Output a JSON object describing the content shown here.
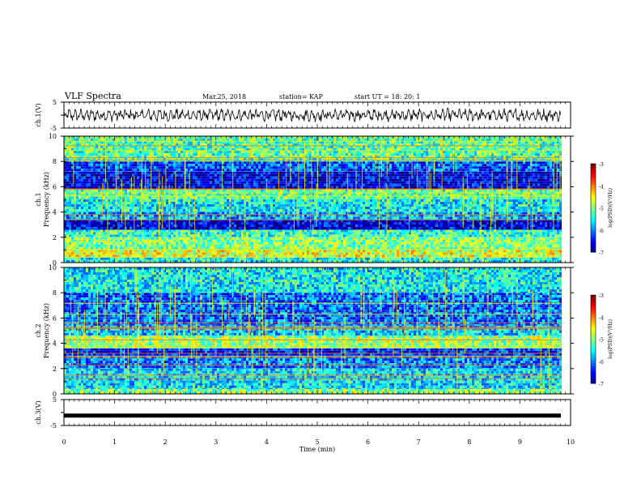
{
  "header": {
    "title": "VLF Spectra",
    "date": "Mar.25, 2018",
    "station": "station= KAP",
    "start": "start  UT =   18: 20: 1"
  },
  "chart_data": [
    {
      "type": "line",
      "panel": "ch1-waveform",
      "ylabel": "ch.1(V)",
      "ylim": [
        -5,
        5
      ],
      "yticks": [
        5,
        -5
      ],
      "xlim": [
        0,
        10
      ],
      "series": [
        {
          "values_description_omitted": true
        }
      ]
    },
    {
      "type": "heatmap",
      "panel": "ch1-spectrogram",
      "ylabel": "ch.1\nFrequency (kHz)",
      "ylabel_lines": [
        "ch.1",
        "Frequency  (kHz)"
      ],
      "ylim": [
        0,
        10
      ],
      "yticks": [
        0,
        2,
        4,
        6,
        8,
        10
      ],
      "xlim": [
        0,
        9.8
      ],
      "colorbar": {
        "label": "log(PSD)(V²/Hz)",
        "ticks": [
          -3,
          -4,
          -5,
          -6,
          -7
        ],
        "range": [
          -7,
          -3
        ]
      },
      "bands": [
        {
          "f": [
            0.0,
            0.4
          ],
          "level": -5.4
        },
        {
          "f": [
            0.4,
            1.0
          ],
          "level": -4.6
        },
        {
          "f": [
            1.0,
            2.0
          ],
          "level": -5.0
        },
        {
          "f": [
            2.0,
            2.6
          ],
          "level": -5.3
        },
        {
          "f": [
            2.6,
            3.4
          ],
          "level": -6.6
        },
        {
          "f": [
            3.4,
            4.0
          ],
          "level": -5.8
        },
        {
          "f": [
            4.0,
            5.0
          ],
          "level": -5.5
        },
        {
          "f": [
            5.0,
            5.8
          ],
          "level": -5.2
        },
        {
          "f": [
            5.8,
            7.2
          ],
          "level": -6.6
        },
        {
          "f": [
            7.2,
            8.0
          ],
          "level": -6.2
        },
        {
          "f": [
            8.0,
            10.0
          ],
          "level": -5.2
        }
      ]
    },
    {
      "type": "heatmap",
      "panel": "ch2-spectrogram",
      "ylabel_lines": [
        "ch.2",
        "Frequency  (kHz)"
      ],
      "ylim": [
        0,
        10
      ],
      "yticks": [
        0,
        2,
        4,
        6,
        8,
        10
      ],
      "xlim": [
        0,
        9.8
      ],
      "colorbar": {
        "label": "log(PSD)(V²/Hz)",
        "ticks": [
          -3,
          -4,
          -5,
          -6,
          -7
        ],
        "range": [
          -7,
          -3
        ]
      },
      "bands": [
        {
          "f": [
            0.0,
            0.4
          ],
          "level": -5.0
        },
        {
          "f": [
            0.4,
            2.0
          ],
          "level": -5.6
        },
        {
          "f": [
            2.0,
            3.0
          ],
          "level": -6.0
        },
        {
          "f": [
            3.0,
            3.6
          ],
          "level": -6.4
        },
        {
          "f": [
            3.6,
            4.6
          ],
          "level": -4.9
        },
        {
          "f": [
            4.6,
            5.4
          ],
          "level": -5.7
        },
        {
          "f": [
            5.4,
            8.0
          ],
          "level": -6.1
        },
        {
          "f": [
            8.0,
            10.0
          ],
          "level": -5.5
        }
      ]
    },
    {
      "type": "line",
      "panel": "ch3-waveform",
      "ylabel": "ch.3(V)",
      "ylim": [
        -5,
        5
      ],
      "yticks": [
        5,
        -5
      ],
      "xlim": [
        0,
        10
      ],
      "series": [
        {
          "values": [
            -1.2,
            -1.2
          ]
        }
      ]
    }
  ],
  "xaxis": {
    "label": "Time  (min)",
    "ticks": [
      0,
      1,
      2,
      3,
      4,
      5,
      6,
      7,
      8,
      9,
      10
    ]
  }
}
